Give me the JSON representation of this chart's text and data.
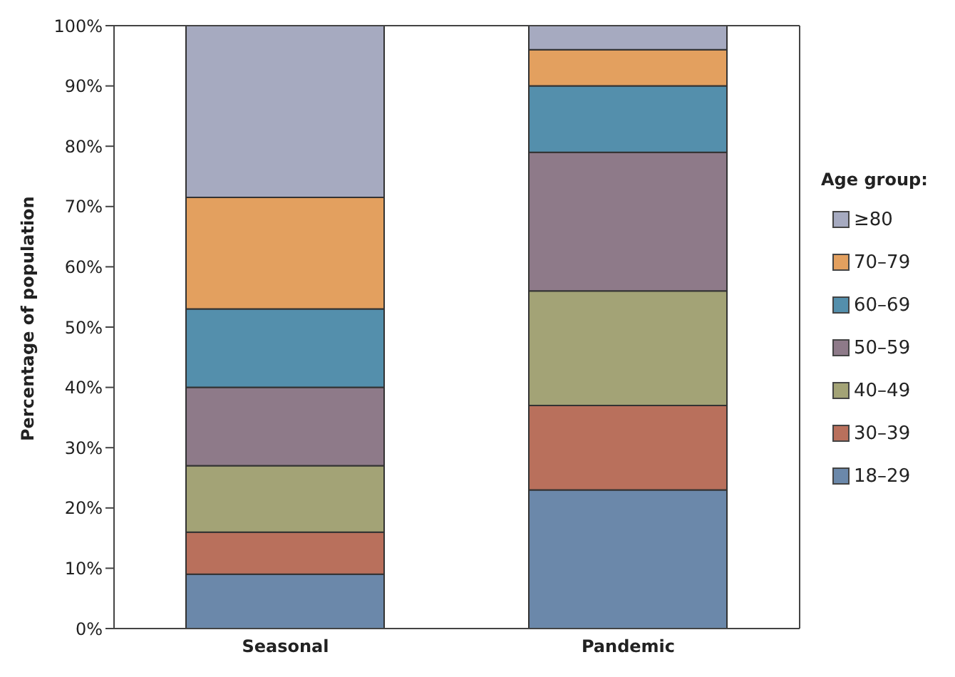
{
  "chart_data": {
    "type": "bar",
    "stacked": true,
    "ylabel": "Percentage of population",
    "legend_title": "Age group:",
    "legend": "right",
    "categories": [
      "Seasonal",
      "Pandemic"
    ],
    "ylim": [
      0,
      100
    ],
    "yticks": [
      {
        "value": 0,
        "label": "0%"
      },
      {
        "value": 10,
        "label": "10%"
      },
      {
        "value": 20,
        "label": "20%"
      },
      {
        "value": 30,
        "label": "30%"
      },
      {
        "value": 40,
        "label": "40%"
      },
      {
        "value": 50,
        "label": "50%"
      },
      {
        "value": 60,
        "label": "60%"
      },
      {
        "value": 70,
        "label": "70%"
      },
      {
        "value": 80,
        "label": "80%"
      },
      {
        "value": 90,
        "label": "90%"
      },
      {
        "value": 100,
        "label": "100%"
      }
    ],
    "series": [
      {
        "name": "18–29",
        "color": "#6b88aa",
        "values": [
          9,
          23
        ]
      },
      {
        "name": "30–39",
        "color": "#b9705c",
        "values": [
          7,
          14
        ]
      },
      {
        "name": "40–49",
        "color": "#a3a376",
        "values": [
          11,
          19
        ]
      },
      {
        "name": "50–59",
        "color": "#8e7a89",
        "values": [
          13,
          23
        ]
      },
      {
        "name": "60–69",
        "color": "#548fac",
        "values": [
          13,
          11
        ]
      },
      {
        "name": "70–79",
        "color": "#e3a05f",
        "values": [
          18.5,
          6
        ]
      },
      {
        "name": "≥80",
        "color": "#a6aac0",
        "values": [
          28.5,
          4
        ]
      }
    ]
  }
}
